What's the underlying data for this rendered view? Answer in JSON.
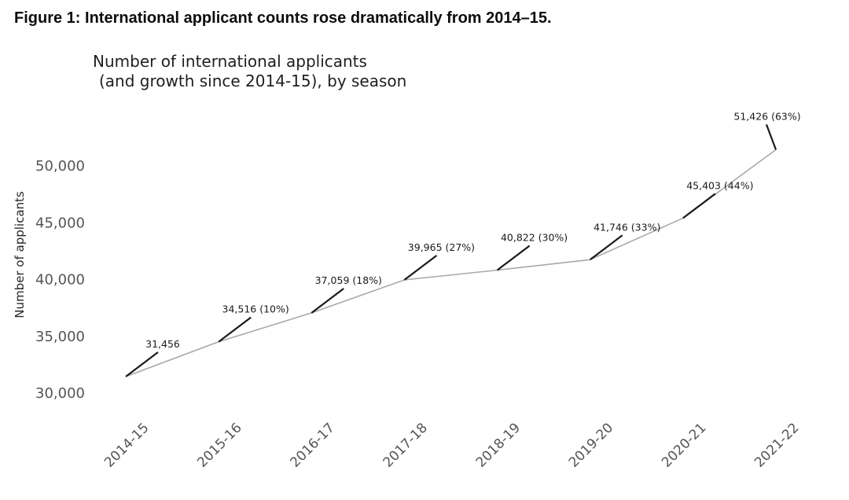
{
  "figure": {
    "caption": "Figure 1: International applicant counts rose dramatically from 2014–15."
  },
  "chart_data": {
    "type": "line",
    "title": "Number of international applicants (and growth since 2014-15), by season",
    "title_line1": "Number of international applicants",
    "title_line2": "(and growth since 2014-15), by season",
    "ylabel": "Number of applicants",
    "xlabel": "",
    "categories": [
      "2014-15",
      "2015-16",
      "2016-17",
      "2017-18",
      "2018-19",
      "2019-20",
      "2020-21",
      "2021-22"
    ],
    "values": [
      31456,
      34516,
      37059,
      39965,
      40822,
      41746,
      45403,
      51426
    ],
    "point_labels": [
      "31,456",
      "34,516 (10%)",
      "37,059 (18%)",
      "39,965 (27%)",
      "40,822 (30%)",
      "41,746 (33%)",
      "45,403 (44%)",
      "51,426 (63%)"
    ],
    "growth_since_2014_15_pct": [
      0,
      10,
      18,
      27,
      30,
      33,
      44,
      63
    ],
    "yticks": [
      30000,
      35000,
      40000,
      45000,
      50000
    ],
    "ytick_labels": [
      "30,000",
      "35,000",
      "40,000",
      "45,000",
      "50,000"
    ],
    "ylim": [
      30000,
      52000
    ],
    "grid": false,
    "legend": "none",
    "axis_spines": false,
    "line_color": "#a8a8a8",
    "leader_line_color": "#1a1a1a",
    "point_label_color": "#1a1a1a",
    "tick_label_color": "#555555",
    "axis_title_color": "#262626"
  }
}
